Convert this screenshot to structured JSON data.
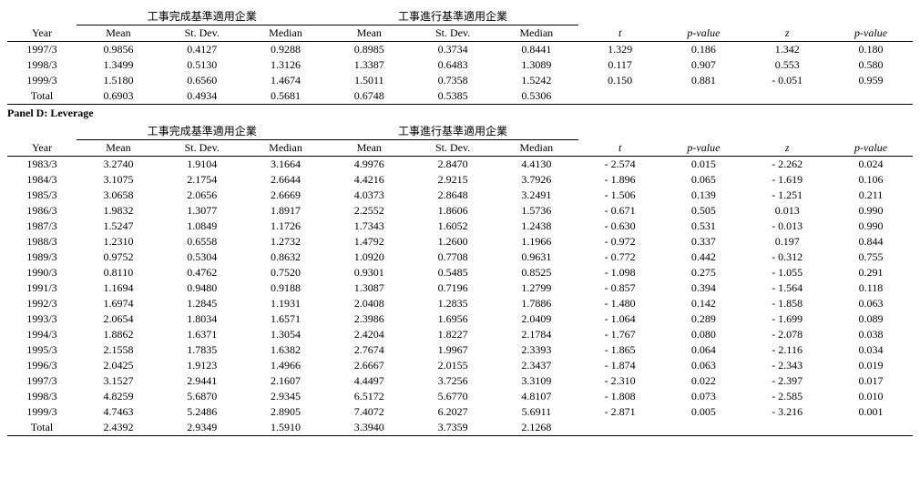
{
  "labels": {
    "year": "Year",
    "mean": "Mean",
    "stdev": "St. Dev.",
    "median": "Median",
    "t": "t",
    "pvalue": "p-value",
    "z": "z",
    "group1": "工事完成基準適用企業",
    "group2": "工事進行基準適用企業",
    "total": "Total",
    "panelD": "Panel D: Leverage"
  },
  "topSection": {
    "rows": [
      {
        "year": "1997/3",
        "a": [
          "0.9856",
          "0.4127",
          "0.9288"
        ],
        "b": [
          "0.8985",
          "0.3734",
          "0.8441"
        ],
        "t": "1.329",
        "pt": "0.186",
        "z": "1.342",
        "pz": "0.180"
      },
      {
        "year": "1998/3",
        "a": [
          "1.3499",
          "0.5130",
          "1.3126"
        ],
        "b": [
          "1.3387",
          "0.6483",
          "1.3089"
        ],
        "t": "0.117",
        "pt": "0.907",
        "z": "0.553",
        "pz": "0.580"
      },
      {
        "year": "1999/3",
        "a": [
          "1.5180",
          "0.6560",
          "1.4674"
        ],
        "b": [
          "1.5011",
          "0.7358",
          "1.5242"
        ],
        "t": "0.150",
        "pt": "0.881",
        "z": "- 0.051",
        "pz": "0.959"
      }
    ],
    "total": {
      "a": [
        "0.6903",
        "0.4934",
        "0.5681"
      ],
      "b": [
        "0.6748",
        "0.5385",
        "0.5306"
      ]
    }
  },
  "panelD": {
    "rows": [
      {
        "year": "1983/3",
        "a": [
          "3.2740",
          "1.9104",
          "3.1664"
        ],
        "b": [
          "4.9976",
          "2.8470",
          "4.4130"
        ],
        "t": "- 2.574",
        "pt": "0.015",
        "z": "- 2.262",
        "pz": "0.024"
      },
      {
        "year": "1984/3",
        "a": [
          "3.1075",
          "2.1754",
          "2.6644"
        ],
        "b": [
          "4.4216",
          "2.9215",
          "3.7926"
        ],
        "t": "- 1.896",
        "pt": "0.065",
        "z": "- 1.619",
        "pz": "0.106"
      },
      {
        "year": "1985/3",
        "a": [
          "3.0658",
          "2.0656",
          "2.6669"
        ],
        "b": [
          "4.0373",
          "2.8648",
          "3.2491"
        ],
        "t": "- 1.506",
        "pt": "0.139",
        "z": "- 1.251",
        "pz": "0.211"
      },
      {
        "year": "1986/3",
        "a": [
          "1.9832",
          "1.3077",
          "1.8917"
        ],
        "b": [
          "2.2552",
          "1.8606",
          "1.5736"
        ],
        "t": "- 0.671",
        "pt": "0.505",
        "z": "0.013",
        "pz": "0.990"
      },
      {
        "year": "1987/3",
        "a": [
          "1.5247",
          "1.0849",
          "1.1726"
        ],
        "b": [
          "1.7343",
          "1.6052",
          "1.2438"
        ],
        "t": "- 0.630",
        "pt": "0.531",
        "z": "- 0.013",
        "pz": "0.990"
      },
      {
        "year": "1988/3",
        "a": [
          "1.2310",
          "0.6558",
          "1.2732"
        ],
        "b": [
          "1.4792",
          "1.2600",
          "1.1966"
        ],
        "t": "- 0.972",
        "pt": "0.337",
        "z": "0.197",
        "pz": "0.844"
      },
      {
        "year": "1989/3",
        "a": [
          "0.9752",
          "0.5304",
          "0.8632"
        ],
        "b": [
          "1.0920",
          "0.7708",
          "0.9631"
        ],
        "t": "- 0.772",
        "pt": "0.442",
        "z": "- 0.312",
        "pz": "0.755"
      },
      {
        "year": "1990/3",
        "a": [
          "0.8110",
          "0.4762",
          "0.7520"
        ],
        "b": [
          "0.9301",
          "0.5485",
          "0.8525"
        ],
        "t": "- 1.098",
        "pt": "0.275",
        "z": "- 1.055",
        "pz": "0.291"
      },
      {
        "year": "1991/3",
        "a": [
          "1.1694",
          "0.9480",
          "0.9188"
        ],
        "b": [
          "1.3087",
          "0.7196",
          "1.2799"
        ],
        "t": "- 0.857",
        "pt": "0.394",
        "z": "- 1.564",
        "pz": "0.118"
      },
      {
        "year": "1992/3",
        "a": [
          "1.6974",
          "1.2845",
          "1.1931"
        ],
        "b": [
          "2.0408",
          "1.2835",
          "1.7886"
        ],
        "t": "- 1.480",
        "pt": "0.142",
        "z": "- 1.858",
        "pz": "0.063"
      },
      {
        "year": "1993/3",
        "a": [
          "2.0654",
          "1.8034",
          "1.6571"
        ],
        "b": [
          "2.3986",
          "1.6956",
          "2.0409"
        ],
        "t": "- 1.064",
        "pt": "0.289",
        "z": "- 1.699",
        "pz": "0.089"
      },
      {
        "year": "1994/3",
        "a": [
          "1.8862",
          "1.6371",
          "1.3054"
        ],
        "b": [
          "2.4204",
          "1.8227",
          "2.1784"
        ],
        "t": "- 1.767",
        "pt": "0.080",
        "z": "- 2.078",
        "pz": "0.038"
      },
      {
        "year": "1995/3",
        "a": [
          "2.1558",
          "1.7835",
          "1.6382"
        ],
        "b": [
          "2.7674",
          "1.9967",
          "2.3393"
        ],
        "t": "- 1.865",
        "pt": "0.064",
        "z": "- 2.116",
        "pz": "0.034"
      },
      {
        "year": "1996/3",
        "a": [
          "2.0425",
          "1.9123",
          "1.4966"
        ],
        "b": [
          "2.6667",
          "2.0155",
          "2.3437"
        ],
        "t": "- 1.874",
        "pt": "0.063",
        "z": "- 2.343",
        "pz": "0.019"
      },
      {
        "year": "1997/3",
        "a": [
          "3.1527",
          "2.9441",
          "2.1607"
        ],
        "b": [
          "4.4497",
          "3.7256",
          "3.3109"
        ],
        "t": "- 2.310",
        "pt": "0.022",
        "z": "- 2.397",
        "pz": "0.017"
      },
      {
        "year": "1998/3",
        "a": [
          "4.8259",
          "5.6870",
          "2.9345"
        ],
        "b": [
          "6.5172",
          "5.6770",
          "4.8107"
        ],
        "t": "- 1.808",
        "pt": "0.073",
        "z": "- 2.585",
        "pz": "0.010"
      },
      {
        "year": "1999/3",
        "a": [
          "4.7463",
          "5.2486",
          "2.8905"
        ],
        "b": [
          "7.4072",
          "6.2027",
          "5.6911"
        ],
        "t": "- 2.871",
        "pt": "0.005",
        "z": "- 3.216",
        "pz": "0.001"
      }
    ],
    "total": {
      "a": [
        "2.4392",
        "2.9349",
        "1.5910"
      ],
      "b": [
        "3.3940",
        "3.7359",
        "2.1268"
      ]
    }
  }
}
